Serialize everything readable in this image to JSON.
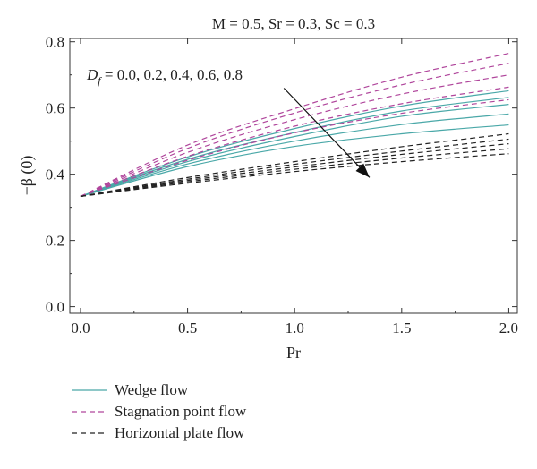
{
  "chart_data": {
    "type": "line",
    "title": "M = 0.5, Sr = 0.3, Sc = 0.3",
    "xlabel": "Pr",
    "ylabel": "−β (0)",
    "xlim": [
      -0.05,
      2.04
    ],
    "ylim": [
      -0.02,
      0.81
    ],
    "xticks": [
      "0.0",
      "0.5",
      "1.0",
      "1.5",
      "2.0"
    ],
    "yticks": [
      "0.0",
      "0.2",
      "0.4",
      "0.6",
      "0.8"
    ],
    "grid": false,
    "legend_position": "below",
    "annotation": {
      "prefix": "D",
      "subscript": "f",
      "text": " = 0.0, 0.2, 0.4, 0.6, 0.8",
      "arrow_from": [
        0.95,
        0.66
      ],
      "arrow_to": [
        1.35,
        0.39
      ]
    },
    "x": [
      0.0,
      0.5,
      1.0,
      1.5,
      2.0
    ],
    "series": [
      {
        "name": "Wedge flow",
        "group": "wedge",
        "Df": 0.0,
        "values": [
          0.333,
          0.452,
          0.538,
          0.606,
          0.652
        ]
      },
      {
        "name": "Wedge flow",
        "group": "wedge",
        "Df": 0.2,
        "values": [
          0.333,
          0.445,
          0.526,
          0.591,
          0.632
        ]
      },
      {
        "name": "Wedge flow",
        "group": "wedge",
        "Df": 0.4,
        "values": [
          0.333,
          0.438,
          0.514,
          0.575,
          0.611
        ]
      },
      {
        "name": "Wedge flow",
        "group": "wedge",
        "Df": 0.6,
        "values": [
          0.333,
          0.431,
          0.5,
          0.55,
          0.582
        ]
      },
      {
        "name": "Wedge flow",
        "group": "wedge",
        "Df": 0.8,
        "values": [
          0.333,
          0.423,
          0.484,
          0.522,
          0.549
        ]
      },
      {
        "name": "Stagnation point flow",
        "group": "stagnation",
        "Df": 0.0,
        "values": [
          0.333,
          0.488,
          0.598,
          0.693,
          0.765
        ]
      },
      {
        "name": "Stagnation point flow",
        "group": "stagnation",
        "Df": 0.2,
        "values": [
          0.333,
          0.478,
          0.585,
          0.67,
          0.735
        ]
      },
      {
        "name": "Stagnation point flow",
        "group": "stagnation",
        "Df": 0.4,
        "values": [
          0.333,
          0.466,
          0.565,
          0.642,
          0.7
        ]
      },
      {
        "name": "Stagnation point flow",
        "group": "stagnation",
        "Df": 0.6,
        "values": [
          0.333,
          0.454,
          0.545,
          0.613,
          0.663
        ]
      },
      {
        "name": "Stagnation point flow",
        "group": "stagnation",
        "Df": 0.8,
        "values": [
          0.333,
          0.442,
          0.525,
          0.584,
          0.625
        ]
      },
      {
        "name": "Horizontal plate flow",
        "group": "horizontal",
        "Df": 0.0,
        "values": [
          0.333,
          0.39,
          0.438,
          0.483,
          0.522
        ]
      },
      {
        "name": "Horizontal plate flow",
        "group": "horizontal",
        "Df": 0.2,
        "values": [
          0.333,
          0.385,
          0.43,
          0.47,
          0.506
        ]
      },
      {
        "name": "Horizontal plate flow",
        "group": "horizontal",
        "Df": 0.4,
        "values": [
          0.333,
          0.381,
          0.422,
          0.46,
          0.492
        ]
      },
      {
        "name": "Horizontal plate flow",
        "group": "horizontal",
        "Df": 0.6,
        "values": [
          0.333,
          0.377,
          0.415,
          0.449,
          0.477
        ]
      },
      {
        "name": "Horizontal plate flow",
        "group": "horizontal",
        "Df": 0.8,
        "values": [
          0.333,
          0.373,
          0.408,
          0.438,
          0.462
        ]
      }
    ],
    "legend": [
      {
        "label": "Wedge flow",
        "group": "wedge",
        "color": "#4aa8a8",
        "dash": "none"
      },
      {
        "label": "Stagnation point flow",
        "group": "stagnation",
        "color": "#b0469c",
        "dash": "6,4"
      },
      {
        "label": "Horizontal plate flow",
        "group": "horizontal",
        "color": "#222222",
        "dash": "6,4"
      }
    ],
    "colors": {
      "wedge": "#4aa8a8",
      "stagnation": "#b0469c",
      "horizontal": "#222222",
      "axis": "#333333"
    }
  }
}
